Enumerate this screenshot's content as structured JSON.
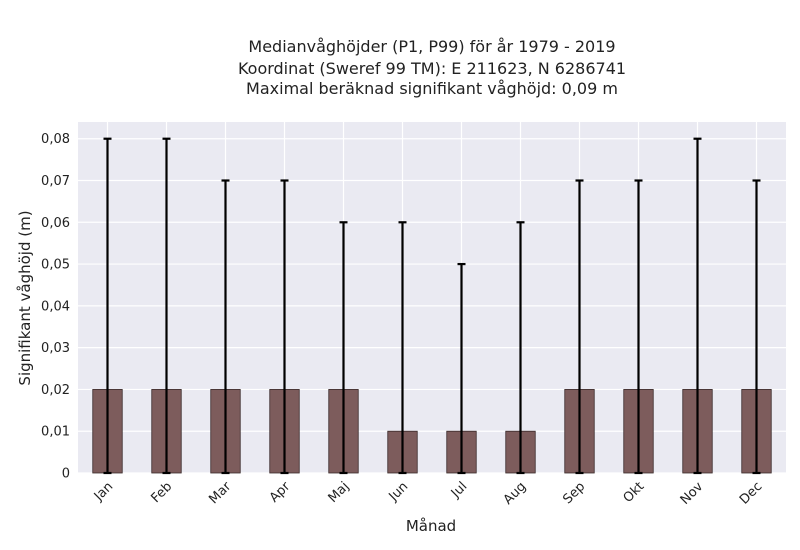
{
  "chart_data": {
    "type": "bar",
    "title_lines": [
      "Medianvåghöjder (P1, P99) för år 1979 - 2019",
      "Koordinat (Sweref 99 TM): E 211623, N 6286741",
      "Maximal beräknad signifikant våghöjd: 0,09 m"
    ],
    "xlabel": "Månad",
    "ylabel": "Signifikant våghöjd (m)",
    "categories": [
      "Jan",
      "Feb",
      "Mar",
      "Apr",
      "Maj",
      "Jun",
      "Jul",
      "Aug",
      "Sep",
      "Okt",
      "Nov",
      "Dec"
    ],
    "values": [
      0.02,
      0.02,
      0.02,
      0.02,
      0.02,
      0.01,
      0.01,
      0.01,
      0.02,
      0.02,
      0.02,
      0.02
    ],
    "error_low": [
      0,
      0,
      0,
      0,
      0,
      0,
      0,
      0,
      0,
      0,
      0,
      0
    ],
    "error_high": [
      0.08,
      0.08,
      0.07,
      0.07,
      0.06,
      0.06,
      0.05,
      0.06,
      0.07,
      0.07,
      0.08,
      0.07
    ],
    "yticks": [
      0,
      0.01,
      0.02,
      0.03,
      0.04,
      0.05,
      0.06,
      0.07,
      0.08
    ],
    "ytick_labels": [
      "0",
      "0,01",
      "0,02",
      "0,03",
      "0,04",
      "0,05",
      "0,06",
      "0,07",
      "0,08"
    ],
    "ylim": [
      0,
      0.084
    ],
    "grid": true,
    "colors": {
      "bar": "#7d5c5c",
      "bar_edge": "#3a2a2a",
      "error": "#000000",
      "plot_bg": "#eaeaf2",
      "grid": "#ffffff"
    }
  }
}
